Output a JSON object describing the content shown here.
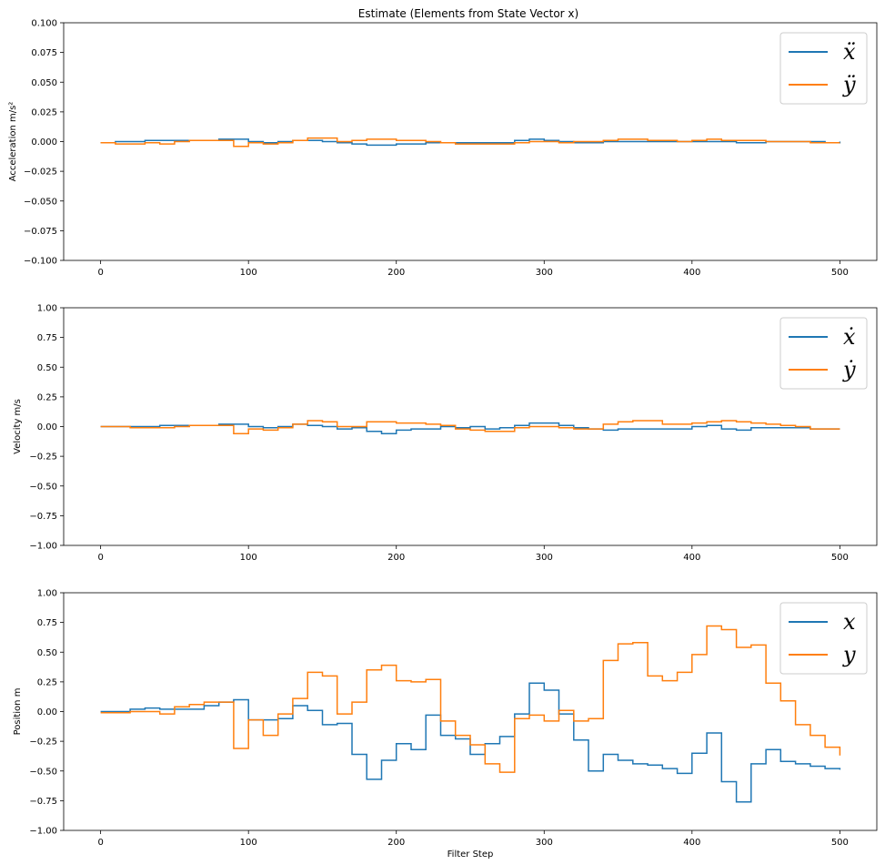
{
  "figure": {
    "title": "Estimate (Elements from State Vector x)",
    "xlabel": "Filter Step"
  },
  "colors": {
    "series_x": "#1f77b4",
    "series_y": "#ff7f0e"
  },
  "chart_data": [
    {
      "type": "line",
      "ylabel": "Acceleration m/s²",
      "xlim": [
        -25,
        525
      ],
      "ylim": [
        -0.1,
        0.1
      ],
      "xticks": [
        0,
        100,
        200,
        300,
        400,
        500
      ],
      "yticks": [
        -0.1,
        -0.075,
        -0.05,
        -0.025,
        0.0,
        0.025,
        0.05,
        0.075,
        0.1
      ],
      "ytick_labels": [
        "−0.100",
        "−0.075",
        "−0.050",
        "−0.025",
        "0.000",
        "0.025",
        "0.050",
        "0.075",
        "0.100"
      ],
      "legend": "top-right",
      "series": [
        {
          "name": "ẍ",
          "x": [
            0,
            10,
            30,
            50,
            60,
            80,
            90,
            100,
            110,
            120,
            130,
            150,
            160,
            170,
            180,
            190,
            200,
            220,
            240,
            260,
            280,
            290,
            300,
            310,
            320,
            340,
            370,
            400,
            410,
            420,
            430,
            450,
            470,
            490,
            500
          ],
          "y": [
            -0.001,
            0,
            0.001,
            0.001,
            0.001,
            0.002,
            0.002,
            0,
            -0.001,
            0,
            0.001,
            0,
            -0.001,
            -0.002,
            -0.003,
            -0.003,
            -0.002,
            -0.001,
            -0.001,
            -0.001,
            0.001,
            0.002,
            0.001,
            0,
            -0.001,
            0,
            0,
            0,
            0,
            0,
            -0.001,
            0,
            0,
            -0.001,
            0
          ]
        },
        {
          "name": "ÿ",
          "x": [
            0,
            10,
            30,
            40,
            50,
            60,
            90,
            100,
            110,
            120,
            130,
            140,
            150,
            160,
            170,
            180,
            190,
            200,
            210,
            220,
            230,
            240,
            250,
            260,
            270,
            280,
            290,
            300,
            310,
            320,
            330,
            340,
            350,
            360,
            370,
            380,
            390,
            400,
            410,
            420,
            430,
            440,
            450,
            460,
            470,
            480,
            500
          ],
          "y": [
            -0.001,
            -0.002,
            -0.001,
            -0.002,
            0,
            0.001,
            -0.004,
            -0.001,
            -0.002,
            -0.001,
            0.001,
            0.003,
            0.003,
            0,
            0.001,
            0.002,
            0.002,
            0.001,
            0.001,
            0,
            -0.001,
            -0.002,
            -0.002,
            -0.002,
            -0.002,
            -0.001,
            0,
            0,
            -0.001,
            0,
            0,
            0.001,
            0.002,
            0.002,
            0.001,
            0.001,
            0,
            0.001,
            0.002,
            0.001,
            0.001,
            0.001,
            0,
            0,
            0,
            -0.001,
            -0.001
          ]
        }
      ]
    },
    {
      "type": "line",
      "ylabel": "Velocity m/s",
      "xlim": [
        -25,
        525
      ],
      "ylim": [
        -1,
        1
      ],
      "xticks": [
        0,
        100,
        200,
        300,
        400,
        500
      ],
      "yticks": [
        -1.0,
        -0.75,
        -0.5,
        -0.25,
        0.0,
        0.25,
        0.5,
        0.75,
        1.0
      ],
      "ytick_labels": [
        "−1.00",
        "−0.75",
        "−0.50",
        "−0.25",
        "0.00",
        "0.25",
        "0.50",
        "0.75",
        "1.00"
      ],
      "legend": "top-right",
      "series": [
        {
          "name": "ẋ",
          "x": [
            0,
            20,
            40,
            60,
            80,
            90,
            100,
            110,
            120,
            130,
            140,
            150,
            160,
            170,
            180,
            190,
            200,
            210,
            220,
            230,
            240,
            250,
            260,
            270,
            280,
            290,
            300,
            310,
            320,
            330,
            340,
            350,
            360,
            370,
            380,
            390,
            400,
            410,
            420,
            430,
            440,
            450,
            460,
            470,
            480,
            490,
            500
          ],
          "y": [
            0,
            0,
            0.01,
            0.01,
            0.02,
            0.02,
            0,
            -0.01,
            0,
            0.02,
            0.01,
            0,
            -0.02,
            -0.01,
            -0.04,
            -0.06,
            -0.03,
            -0.02,
            -0.02,
            0,
            -0.01,
            0,
            -0.02,
            -0.01,
            0.01,
            0.03,
            0.03,
            0.01,
            -0.01,
            -0.02,
            -0.03,
            -0.02,
            -0.02,
            -0.02,
            -0.02,
            -0.02,
            0,
            0.01,
            -0.02,
            -0.03,
            -0.01,
            -0.01,
            -0.01,
            -0.01,
            -0.02,
            -0.02,
            -0.02
          ]
        },
        {
          "name": "ẏ",
          "x": [
            0,
            20,
            40,
            50,
            60,
            70,
            90,
            100,
            110,
            120,
            130,
            140,
            150,
            160,
            170,
            180,
            190,
            200,
            210,
            220,
            230,
            240,
            250,
            260,
            270,
            280,
            290,
            300,
            310,
            320,
            330,
            340,
            350,
            360,
            370,
            380,
            390,
            400,
            410,
            420,
            430,
            440,
            450,
            460,
            470,
            480,
            490,
            500
          ],
          "y": [
            0,
            -0.01,
            -0.01,
            0,
            0.01,
            0.01,
            -0.06,
            -0.02,
            -0.03,
            -0.01,
            0.02,
            0.05,
            0.04,
            0,
            0,
            0.04,
            0.04,
            0.03,
            0.03,
            0.02,
            0.01,
            -0.02,
            -0.03,
            -0.04,
            -0.04,
            -0.01,
            0,
            0,
            -0.01,
            -0.02,
            -0.02,
            0.02,
            0.04,
            0.05,
            0.05,
            0.02,
            0.02,
            0.03,
            0.04,
            0.05,
            0.04,
            0.03,
            0.02,
            0.01,
            0,
            -0.02,
            -0.02,
            -0.02
          ]
        }
      ]
    },
    {
      "type": "line",
      "ylabel": "Position m",
      "xlim": [
        -25,
        525
      ],
      "ylim": [
        -1,
        1
      ],
      "xticks": [
        0,
        100,
        200,
        300,
        400,
        500
      ],
      "yticks": [
        -1.0,
        -0.75,
        -0.5,
        -0.25,
        0.0,
        0.25,
        0.5,
        0.75,
        1.0
      ],
      "ytick_labels": [
        "−1.00",
        "−0.75",
        "−0.50",
        "−0.25",
        "0.00",
        "0.25",
        "0.50",
        "0.75",
        "1.00"
      ],
      "legend": "top-right",
      "series": [
        {
          "name": "x",
          "x": [
            0,
            20,
            30,
            40,
            50,
            60,
            70,
            80,
            90,
            100,
            110,
            120,
            130,
            140,
            150,
            160,
            170,
            180,
            190,
            200,
            210,
            220,
            230,
            240,
            250,
            260,
            270,
            280,
            290,
            300,
            310,
            320,
            330,
            340,
            350,
            360,
            370,
            380,
            390,
            400,
            410,
            420,
            430,
            440,
            450,
            460,
            470,
            480,
            490,
            500
          ],
          "y": [
            0,
            0.02,
            0.03,
            0.02,
            0.02,
            0.02,
            0.05,
            0.08,
            0.1,
            -0.07,
            -0.07,
            -0.06,
            0.05,
            0.01,
            -0.11,
            -0.1,
            -0.36,
            -0.57,
            -0.41,
            -0.27,
            -0.32,
            -0.03,
            -0.2,
            -0.23,
            -0.36,
            -0.27,
            -0.21,
            -0.02,
            0.24,
            0.18,
            -0.02,
            -0.24,
            -0.5,
            -0.36,
            -0.41,
            -0.44,
            -0.45,
            -0.48,
            -0.52,
            -0.35,
            -0.18,
            -0.59,
            -0.76,
            -0.44,
            -0.32,
            -0.42,
            -0.44,
            -0.46,
            -0.48,
            -0.49
          ]
        },
        {
          "name": "y",
          "x": [
            0,
            20,
            30,
            40,
            50,
            60,
            70,
            80,
            90,
            100,
            110,
            120,
            130,
            140,
            150,
            160,
            170,
            180,
            190,
            200,
            210,
            220,
            230,
            240,
            250,
            260,
            270,
            280,
            290,
            300,
            310,
            320,
            330,
            340,
            350,
            360,
            370,
            380,
            390,
            400,
            410,
            420,
            430,
            440,
            450,
            460,
            470,
            480,
            490,
            500
          ],
          "y": [
            -0.01,
            0,
            0,
            -0.02,
            0.04,
            0.06,
            0.08,
            0.08,
            -0.31,
            -0.07,
            -0.2,
            -0.02,
            0.11,
            0.33,
            0.3,
            -0.02,
            0.08,
            0.35,
            0.39,
            0.26,
            0.25,
            0.27,
            -0.08,
            -0.2,
            -0.28,
            -0.44,
            -0.51,
            -0.06,
            -0.03,
            -0.08,
            0.01,
            -0.08,
            -0.06,
            0.43,
            0.57,
            0.58,
            0.3,
            0.26,
            0.33,
            0.48,
            0.72,
            0.69,
            0.54,
            0.56,
            0.24,
            0.09,
            -0.11,
            -0.2,
            -0.3,
            -0.37
          ]
        }
      ]
    }
  ]
}
